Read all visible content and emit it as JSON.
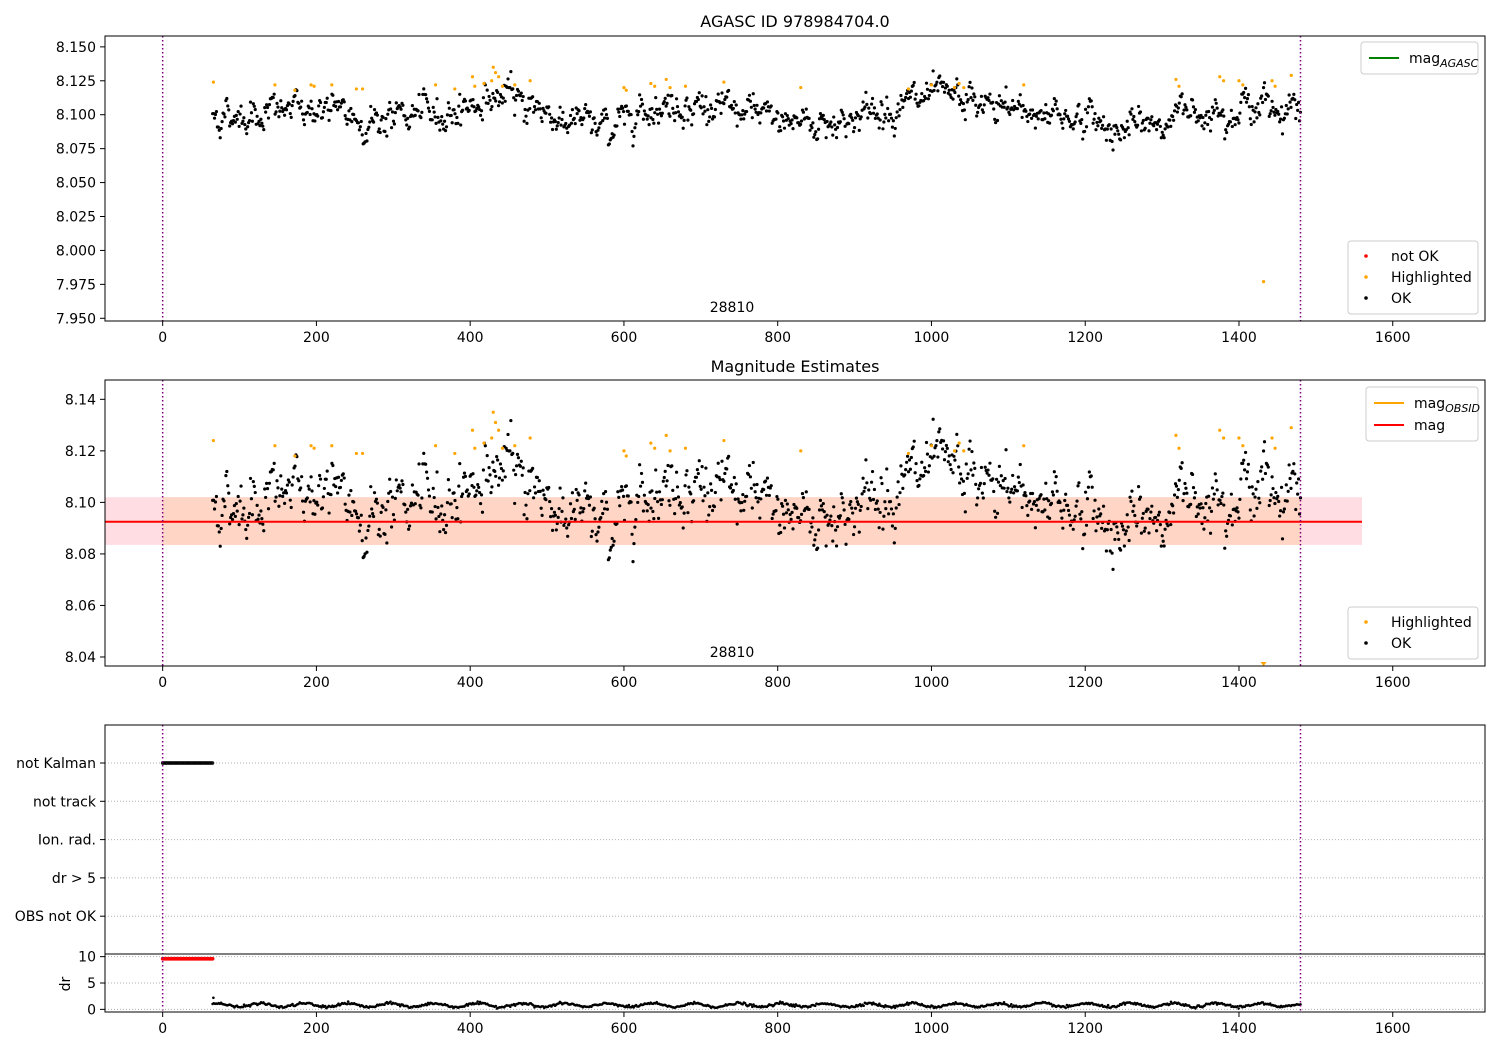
{
  "chart_data": [
    {
      "type": "scatter",
      "title": "AGASC ID 978984704.0",
      "annotation": "28810",
      "xlim": [
        -75,
        1720
      ],
      "ylim": [
        7.948,
        8.158
      ],
      "xticks": [
        0,
        200,
        400,
        600,
        800,
        1000,
        1200,
        1400,
        1600
      ],
      "yticks": [
        7.95,
        7.975,
        8.0,
        8.025,
        8.05,
        8.075,
        8.1,
        8.125,
        8.15
      ],
      "ytick_labels": [
        "7.950",
        "7.975",
        "8.000",
        "8.025",
        "8.050",
        "8.075",
        "8.100",
        "8.125",
        "8.150"
      ],
      "vlines": [
        0,
        1480
      ],
      "legend_lines": [
        {
          "label_main": "mag",
          "label_sub": "AGASC",
          "color": "#008000"
        }
      ],
      "legend_points": [
        {
          "label": "not OK",
          "color": "#ff0000"
        },
        {
          "label": "Highlighted",
          "color": "#ffa500"
        },
        {
          "label": "OK",
          "color": "#000000"
        }
      ],
      "series": [
        {
          "name": "OK",
          "color": "#000000",
          "x_range": [
            65,
            1480
          ],
          "count": 1150,
          "mean_curve": [
            [
              65,
              8.099
            ],
            [
              120,
              8.101
            ],
            [
              200,
              8.105
            ],
            [
              270,
              8.095
            ],
            [
              320,
              8.1
            ],
            [
              360,
              8.1
            ],
            [
              430,
              8.113
            ],
            [
              470,
              8.11
            ],
            [
              520,
              8.097
            ],
            [
              580,
              8.09
            ],
            [
              620,
              8.106
            ],
            [
              680,
              8.108
            ],
            [
              740,
              8.102
            ],
            [
              800,
              8.097
            ],
            [
              860,
              8.094
            ],
            [
              900,
              8.098
            ],
            [
              960,
              8.108
            ],
            [
              1020,
              8.112
            ],
            [
              1080,
              8.105
            ],
            [
              1140,
              8.102
            ],
            [
              1200,
              8.098
            ],
            [
              1250,
              8.088
            ],
            [
              1300,
              8.095
            ],
            [
              1340,
              8.104
            ],
            [
              1400,
              8.106
            ],
            [
              1480,
              8.106
            ]
          ],
          "spread": 0.009
        },
        {
          "name": "Highlighted",
          "color": "#ffa500",
          "points": [
            [
              66,
              8.124
            ],
            [
              146,
              8.122
            ],
            [
              172,
              8.118
            ],
            [
              193,
              8.122
            ],
            [
              197,
              8.121
            ],
            [
              220,
              8.122
            ],
            [
              252,
              8.119
            ],
            [
              260,
              8.119
            ],
            [
              355,
              8.122
            ],
            [
              380,
              8.119
            ],
            [
              403,
              8.128
            ],
            [
              406,
              8.121
            ],
            [
              418,
              8.123
            ],
            [
              428,
              8.125
            ],
            [
              430,
              8.135
            ],
            [
              433,
              8.131
            ],
            [
              437,
              8.128
            ],
            [
              442,
              8.121
            ],
            [
              458,
              8.122
            ],
            [
              478,
              8.125
            ],
            [
              600,
              8.12
            ],
            [
              603,
              8.118
            ],
            [
              635,
              8.123
            ],
            [
              640,
              8.121
            ],
            [
              655,
              8.126
            ],
            [
              660,
              8.12
            ],
            [
              680,
              8.121
            ],
            [
              730,
              8.124
            ],
            [
              830,
              8.12
            ],
            [
              970,
              8.119
            ],
            [
              1000,
              8.122
            ],
            [
              1030,
              8.12
            ],
            [
              1036,
              8.123
            ],
            [
              1042,
              8.12
            ],
            [
              1120,
              8.122
            ],
            [
              1318,
              8.126
            ],
            [
              1322,
              8.121
            ],
            [
              1375,
              8.128
            ],
            [
              1380,
              8.125
            ],
            [
              1400,
              8.125
            ],
            [
              1405,
              8.122
            ],
            [
              1432,
              7.977
            ],
            [
              1443,
              8.125
            ],
            [
              1447,
              8.121
            ],
            [
              1468,
              8.129
            ]
          ]
        }
      ]
    },
    {
      "type": "scatter",
      "title": "Magnitude Estimates",
      "annotation": "28810",
      "xlim": [
        -75,
        1720
      ],
      "ylim": [
        8.0365,
        8.1475
      ],
      "xticks": [
        0,
        200,
        400,
        600,
        800,
        1000,
        1200,
        1400,
        1600
      ],
      "yticks": [
        8.04,
        8.06,
        8.08,
        8.1,
        8.12,
        8.14
      ],
      "ytick_labels": [
        "8.04",
        "8.06",
        "8.08",
        "8.10",
        "8.12",
        "8.14"
      ],
      "vlines": [
        0,
        1480
      ],
      "mag_line": 8.0925,
      "band_outer": {
        "y": [
          8.0835,
          8.102
        ],
        "x": [
          -75,
          1560
        ],
        "color": "#ffdde3"
      },
      "band_obsid": {
        "y": [
          8.0835,
          8.102
        ],
        "x": [
          0,
          1480
        ],
        "color": "#ffd5c5"
      },
      "legend_lines": [
        {
          "label_main": "mag",
          "label_sub": "OBSID",
          "color": "#ffa500"
        },
        {
          "label_main": "mag",
          "label_sub": "",
          "color": "#ff0000"
        }
      ],
      "legend_points": [
        {
          "label": "Highlighted",
          "color": "#ffa500"
        },
        {
          "label": "OK",
          "color": "#000000"
        }
      ],
      "clipped_point": {
        "x": 1432,
        "color": "#ffa500"
      }
    },
    {
      "type": "scatter",
      "title": "",
      "xlim": [
        -75,
        1720
      ],
      "xticks": [
        0,
        200,
        400,
        600,
        800,
        1000,
        1200,
        1400,
        1600
      ],
      "flag_categories": [
        "not Kalman",
        "not track",
        "Ion. rad.",
        "dr > 5",
        "OBS not OK"
      ],
      "flag_segments": [
        {
          "category": "not Kalman",
          "x_range": [
            0,
            65
          ],
          "color": "#000000"
        }
      ],
      "vlines": [
        0,
        1480
      ],
      "dr_ylabel": "dr",
      "dr_yticks": [
        0,
        5,
        10
      ],
      "dr_ytick_labels": [
        "0",
        "5",
        "10"
      ],
      "dr_ylim": [
        -0.5,
        10.5
      ],
      "dr_series": [
        {
          "name": "dr > 5",
          "color": "#ff0000",
          "x_range": [
            0,
            65
          ],
          "value": 9.6
        },
        {
          "name": "dr",
          "color": "#000000",
          "x_range": [
            65,
            1480
          ],
          "value": 0.8
        }
      ]
    }
  ]
}
